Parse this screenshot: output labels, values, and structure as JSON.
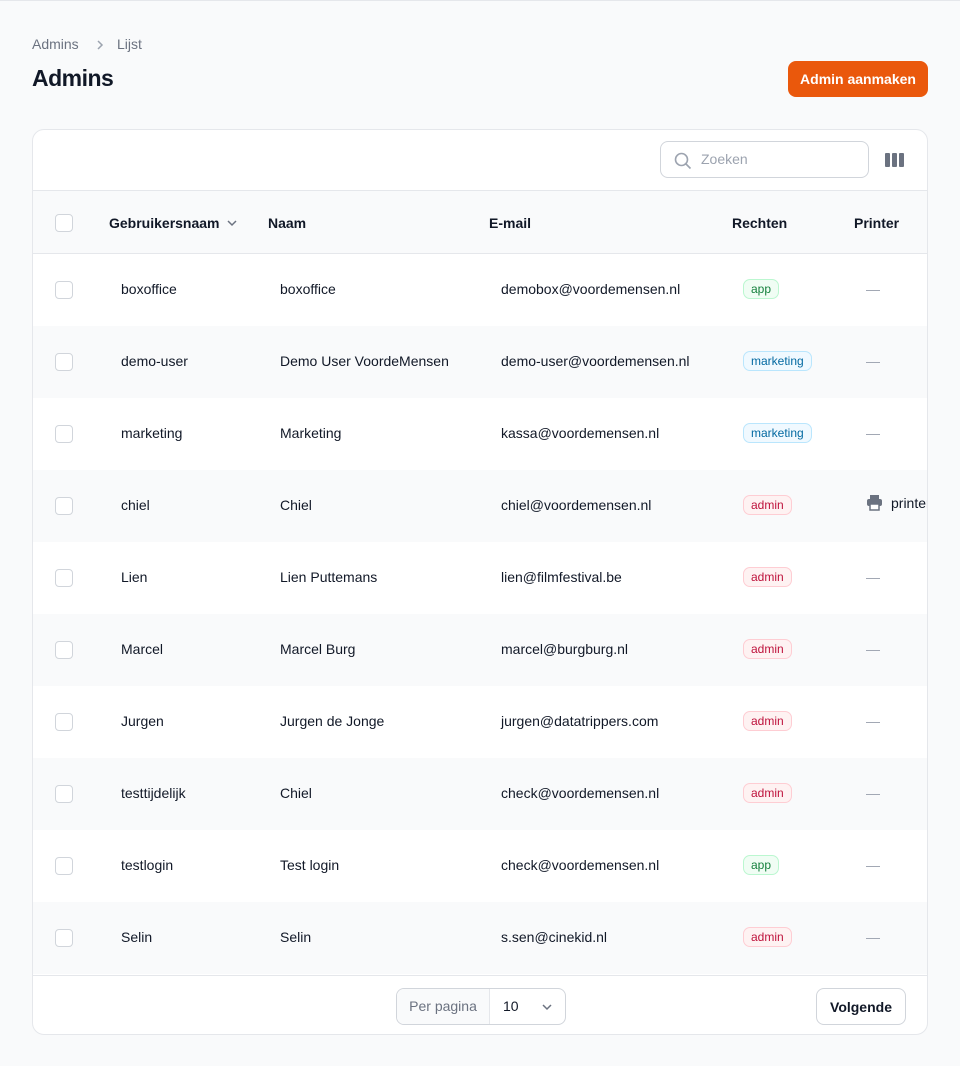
{
  "breadcrumb": [
    "Admins",
    "Lijst"
  ],
  "header": {
    "title": "Admins",
    "button": "Admin aanmaken"
  },
  "search": {
    "placeholder": "Zoeken"
  },
  "table": {
    "columns": [
      "Gebruikersnaam",
      "Naam",
      "E-mail",
      "Rechten",
      "Printer"
    ],
    "rows": [
      [
        "boxoffice",
        "boxoffice",
        "demobox@voordemensen.nl",
        "app",
        "—"
      ],
      [
        "demo-user",
        "Demo User VoordeMensen",
        "demo-user@voordemensen.nl",
        "marketing",
        "—"
      ],
      [
        "marketing",
        "Marketing",
        "kassa@voordemensen.nl",
        "marketing",
        "—"
      ],
      [
        "chiel",
        "Chiel",
        "chiel@voordemensen.nl",
        "admin",
        "printer"
      ],
      [
        "Lien",
        "Lien Puttemans",
        "lien@filmfestival.be",
        "admin",
        "—"
      ],
      [
        "Marcel",
        "Marcel Burg",
        "marcel@burgburg.nl",
        "admin",
        "—"
      ],
      [
        "Jurgen",
        "Jurgen de Jonge",
        "jurgen@datatrippers.com",
        "admin",
        "—"
      ],
      [
        "testtijdelijk",
        "Chiel",
        "check@voordemensen.nl",
        "admin",
        "—"
      ],
      [
        "testlogin",
        "Test login",
        "check@voordemensen.nl",
        "app",
        "—"
      ],
      [
        "Selin",
        "Selin",
        "s.sen@cinekid.nl",
        "admin",
        "—"
      ]
    ]
  },
  "footer": {
    "per_page_label": "Per pagina",
    "per_page": "10",
    "next": "Volgende"
  }
}
